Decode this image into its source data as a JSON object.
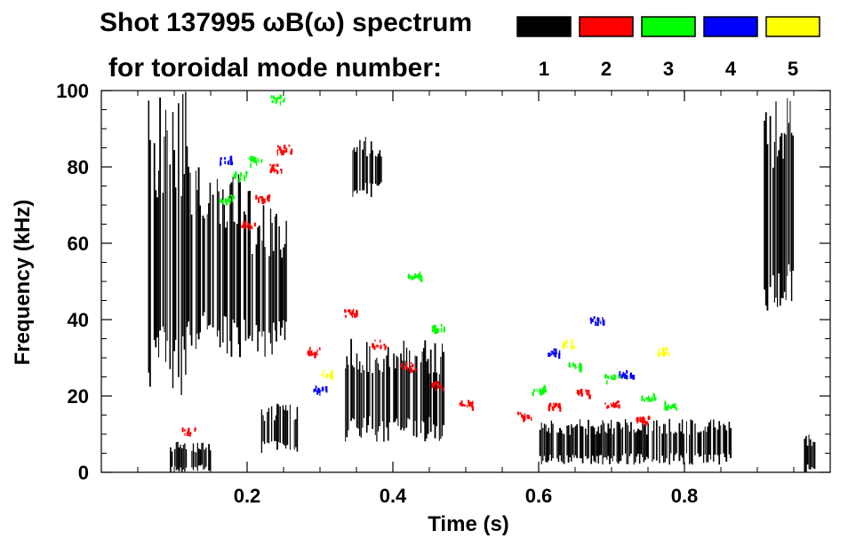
{
  "chart_data": {
    "type": "heatmap",
    "title_line1": "Shot 137995 ωB(ω) spectrum",
    "title_line2": "for toroidal mode number:",
    "xlabel": "Time (s)",
    "ylabel": "Frequency (kHz)",
    "xlim": [
      0.0,
      1.0
    ],
    "ylim": [
      0,
      100
    ],
    "x_ticks": [
      {
        "value": 0.2,
        "label": "0.2"
      },
      {
        "value": 0.4,
        "label": "0.4"
      },
      {
        "value": 0.6,
        "label": "0.6"
      },
      {
        "value": 0.8,
        "label": "0.8"
      }
    ],
    "y_ticks": [
      {
        "value": 0,
        "label": "0"
      },
      {
        "value": 20,
        "label": "20"
      },
      {
        "value": 40,
        "label": "40"
      },
      {
        "value": 60,
        "label": "60"
      },
      {
        "value": 80,
        "label": "80"
      },
      {
        "value": 100,
        "label": "100"
      }
    ],
    "legend": [
      {
        "label": "1",
        "color": "#000000"
      },
      {
        "label": "2",
        "color": "#ff0000"
      },
      {
        "label": "3",
        "color": "#00ff00"
      },
      {
        "label": "4",
        "color": "#0000ff"
      },
      {
        "label": "5",
        "color": "#ffff00"
      }
    ],
    "series": [
      {
        "name": "n=1",
        "color": "#000000",
        "regions": [
          {
            "t": [
              0.065,
              0.12
            ],
            "f": [
              20,
              100
            ]
          },
          {
            "t": [
              0.12,
              0.205
            ],
            "f": [
              30,
              80
            ]
          },
          {
            "t": [
              0.205,
              0.255
            ],
            "f": [
              30,
              70
            ]
          },
          {
            "t": [
              0.095,
              0.15
            ],
            "f": [
              0,
              8
            ]
          },
          {
            "t": [
              0.22,
              0.27
            ],
            "f": [
              5,
              18
            ]
          },
          {
            "t": [
              0.335,
              0.47
            ],
            "f": [
              8,
              35
            ]
          },
          {
            "t": [
              0.345,
              0.385
            ],
            "f": [
              72,
              88
            ]
          },
          {
            "t": [
              0.6,
              0.865
            ],
            "f": [
              2,
              14
            ]
          },
          {
            "t": [
              0.91,
              0.95
            ],
            "f": [
              40,
              100
            ]
          },
          {
            "t": [
              0.965,
              0.98
            ],
            "f": [
              0,
              10
            ]
          }
        ]
      },
      {
        "name": "n=2",
        "color": "#ff0000",
        "points": [
          {
            "t": 0.2,
            "f": 65
          },
          {
            "t": 0.22,
            "f": 72
          },
          {
            "t": 0.24,
            "f": 80
          },
          {
            "t": 0.25,
            "f": 85
          },
          {
            "t": 0.29,
            "f": 32
          },
          {
            "t": 0.34,
            "f": 42
          },
          {
            "t": 0.38,
            "f": 34
          },
          {
            "t": 0.42,
            "f": 28
          },
          {
            "t": 0.46,
            "f": 23
          },
          {
            "t": 0.5,
            "f": 18
          },
          {
            "t": 0.58,
            "f": 15
          },
          {
            "t": 0.62,
            "f": 18
          },
          {
            "t": 0.66,
            "f": 21
          },
          {
            "t": 0.7,
            "f": 18
          },
          {
            "t": 0.74,
            "f": 14
          },
          {
            "t": 0.12,
            "f": 11
          }
        ]
      },
      {
        "name": "n=3",
        "color": "#00ff00",
        "points": [
          {
            "t": 0.17,
            "f": 72
          },
          {
            "t": 0.19,
            "f": 78
          },
          {
            "t": 0.21,
            "f": 82
          },
          {
            "t": 0.24,
            "f": 98
          },
          {
            "t": 0.43,
            "f": 52
          },
          {
            "t": 0.46,
            "f": 38
          },
          {
            "t": 0.6,
            "f": 22
          },
          {
            "t": 0.65,
            "f": 28
          },
          {
            "t": 0.7,
            "f": 25
          },
          {
            "t": 0.75,
            "f": 20
          },
          {
            "t": 0.78,
            "f": 18
          }
        ]
      },
      {
        "name": "n=4",
        "color": "#0000ff",
        "points": [
          {
            "t": 0.17,
            "f": 82
          },
          {
            "t": 0.3,
            "f": 22
          },
          {
            "t": 0.62,
            "f": 32
          },
          {
            "t": 0.68,
            "f": 40
          },
          {
            "t": 0.72,
            "f": 26
          }
        ]
      },
      {
        "name": "n=5",
        "color": "#ffff00",
        "points": [
          {
            "t": 0.31,
            "f": 26
          },
          {
            "t": 0.64,
            "f": 34
          },
          {
            "t": 0.77,
            "f": 32
          }
        ]
      }
    ]
  }
}
